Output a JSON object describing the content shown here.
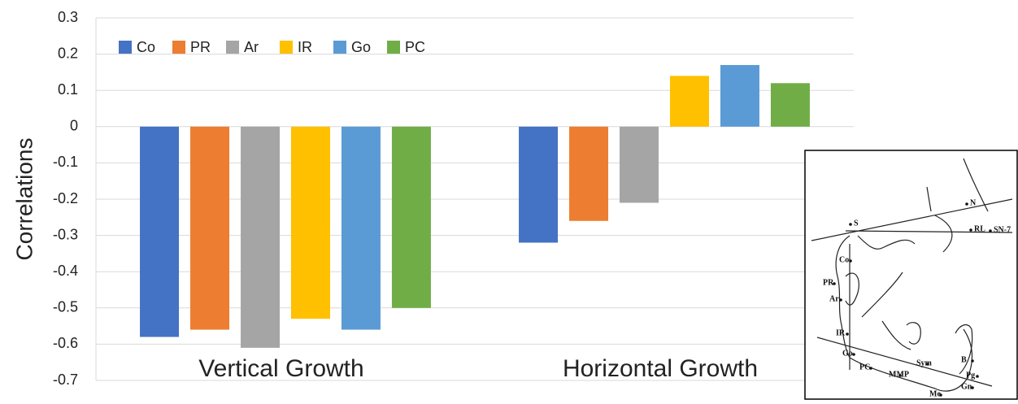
{
  "chart_data": {
    "type": "bar",
    "y_label": "Correlations",
    "categories": [
      "Vertical Growth",
      "Horizontal Growth"
    ],
    "series": [
      {
        "name": "Co",
        "color": "#4472c4",
        "values": [
          -0.58,
          -0.32
        ]
      },
      {
        "name": "PR",
        "color": "#ed7d31",
        "values": [
          -0.56,
          -0.26
        ]
      },
      {
        "name": "Ar",
        "color": "#a5a5a5",
        "values": [
          -0.61,
          -0.21
        ]
      },
      {
        "name": "IR",
        "color": "#ffc000",
        "values": [
          -0.53,
          0.14
        ]
      },
      {
        "name": "Go",
        "color": "#5b9bd5",
        "values": [
          -0.56,
          0.17
        ]
      },
      {
        "name": "PC",
        "color": "#70ad47",
        "values": [
          -0.5,
          0.12
        ]
      }
    ],
    "ylim": [
      -0.7,
      0.3
    ],
    "yticks": [
      0.3,
      0.2,
      0.1,
      0,
      -0.1,
      -0.2,
      -0.3,
      -0.4,
      -0.5,
      -0.6,
      -0.7
    ],
    "grid": true,
    "legend": "top-left"
  },
  "inset": {
    "labels": [
      "S",
      "N",
      "RL",
      "SN-7",
      "Co",
      "PR",
      "Ar",
      "IR",
      "Go",
      "PC",
      "MMP",
      "Sym",
      "B",
      "Pg",
      "Gn",
      "Me"
    ]
  }
}
